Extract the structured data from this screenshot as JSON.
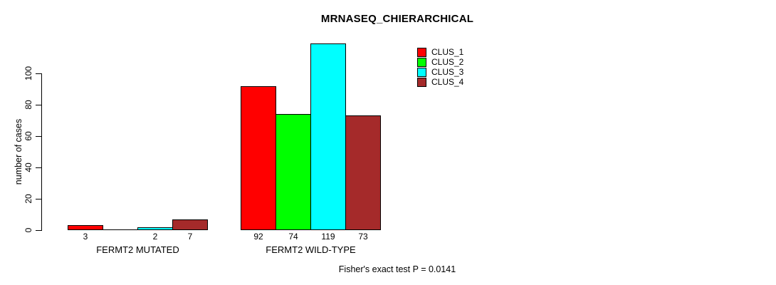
{
  "chart_data": {
    "type": "bar",
    "title": "MRNASEQ_CHIERARCHICAL",
    "ylabel": "number of cases",
    "ylim": [
      0,
      100
    ],
    "yticks": [
      0,
      20,
      40,
      60,
      80,
      100
    ],
    "grid": false,
    "legend_position": "top-right",
    "categories": [
      "FERMT2 MUTATED",
      "FERMT2 WILD-TYPE"
    ],
    "series": [
      {
        "name": "CLUS_1",
        "color": "#FF0000",
        "values": [
          3,
          92
        ]
      },
      {
        "name": "CLUS_2",
        "color": "#00FF00",
        "values": [
          0,
          74
        ]
      },
      {
        "name": "CLUS_3",
        "color": "#00FFFF",
        "values": [
          2,
          119
        ]
      },
      {
        "name": "CLUS_4",
        "color": "#A52A2A",
        "values": [
          7,
          73
        ]
      }
    ],
    "bar_value_labels": {
      "FERMT2 MUTATED": [
        "3",
        "",
        "2",
        "7"
      ],
      "FERMT2 WILD-TYPE": [
        "92",
        "74",
        "119",
        "73"
      ]
    },
    "footnote": "Fisher's exact test P = 0.0141",
    "axis_color": "#000000",
    "background": "#FFFFFF"
  }
}
